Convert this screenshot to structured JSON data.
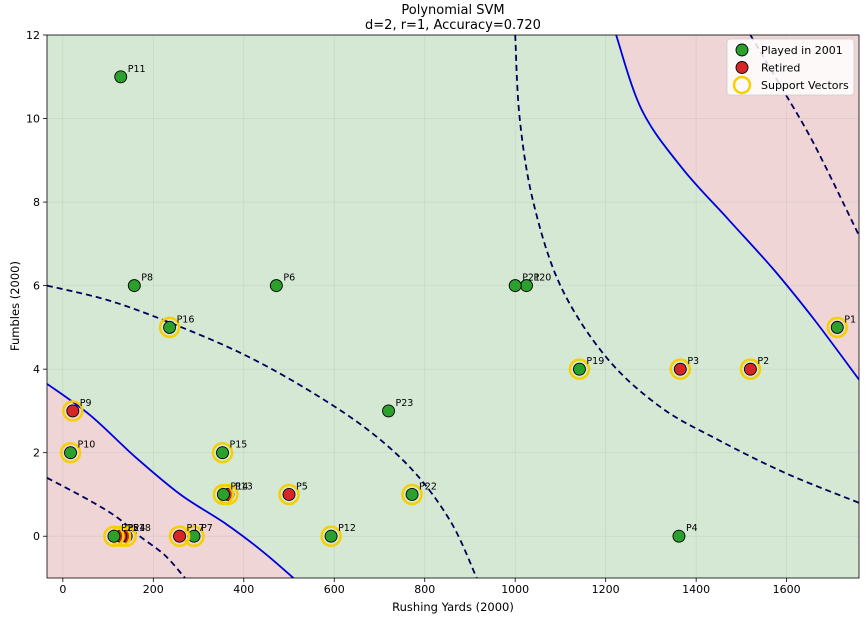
{
  "chart_data": {
    "type": "scatter",
    "title": "Polynomial SVM",
    "subtitle": "d=2, r=1, Accuracy=0.720",
    "xlabel": "Rushing Yards (2000)",
    "ylabel": "Fumbles (2000)",
    "xlim": [
      -35,
      1760
    ],
    "ylim": [
      -1,
      12
    ],
    "xticks": [
      0,
      200,
      400,
      600,
      800,
      1000,
      1200,
      1400,
      1600
    ],
    "yticks": [
      0,
      2,
      4,
      6,
      8,
      10,
      12
    ],
    "grid": true,
    "legend_position": "top-right",
    "colors": {
      "played": "#2ca02c",
      "retired": "#d62728",
      "support": "#f5d000",
      "region_played": "#d5e8d4",
      "region_retired": "#efd5d5",
      "boundary": "#0000dd",
      "margin": "#00005a"
    },
    "legend": [
      {
        "label": "Played in 2001",
        "kind": "played"
      },
      {
        "label": "Retired",
        "kind": "retired"
      },
      {
        "label": "Support Vectors",
        "kind": "support"
      }
    ],
    "points": [
      {
        "label": "P1",
        "x": 1712,
        "y": 5,
        "class": "played",
        "support": true
      },
      {
        "label": "P2",
        "x": 1520,
        "y": 4,
        "class": "retired",
        "support": true
      },
      {
        "label": "P3",
        "x": 1365,
        "y": 4,
        "class": "retired",
        "support": true
      },
      {
        "label": "P4",
        "x": 1362,
        "y": 0,
        "class": "played",
        "support": false
      },
      {
        "label": "P5",
        "x": 500,
        "y": 1,
        "class": "retired",
        "support": true
      },
      {
        "label": "P6",
        "x": 472,
        "y": 6,
        "class": "played",
        "support": false
      },
      {
        "label": "P7",
        "x": 290,
        "y": 0,
        "class": "played",
        "support": true
      },
      {
        "label": "P8",
        "x": 158,
        "y": 6,
        "class": "played",
        "support": false
      },
      {
        "label": "P9",
        "x": 22,
        "y": 3,
        "class": "retired",
        "support": true
      },
      {
        "label": "P10",
        "x": 17,
        "y": 2,
        "class": "played",
        "support": true
      },
      {
        "label": "P11",
        "x": 128,
        "y": 11,
        "class": "played",
        "support": false
      },
      {
        "label": "P12",
        "x": 593,
        "y": 0,
        "class": "played",
        "support": true
      },
      {
        "label": "P13",
        "x": 365,
        "y": 1,
        "class": "retired",
        "support": true
      },
      {
        "label": "P14",
        "x": 355,
        "y": 1,
        "class": "played",
        "support": true
      },
      {
        "label": "P15",
        "x": 353,
        "y": 2,
        "class": "played",
        "support": true
      },
      {
        "label": "P16",
        "x": 236,
        "y": 5,
        "class": "played",
        "support": true
      },
      {
        "label": "P17",
        "x": 258,
        "y": 0,
        "class": "retired",
        "support": true
      },
      {
        "label": "P18",
        "x": 140,
        "y": 0,
        "class": "retired",
        "support": true
      },
      {
        "label": "P19",
        "x": 1142,
        "y": 4,
        "class": "played",
        "support": true
      },
      {
        "label": "P20",
        "x": 1025,
        "y": 6,
        "class": "played",
        "support": false
      },
      {
        "label": "P21",
        "x": 1000,
        "y": 6,
        "class": "played",
        "support": false
      },
      {
        "label": "P22",
        "x": 772,
        "y": 1,
        "class": "played",
        "support": true
      },
      {
        "label": "P23",
        "x": 720,
        "y": 3,
        "class": "played",
        "support": false
      },
      {
        "label": "P24",
        "x": 128,
        "y": 0,
        "class": "retired",
        "support": true
      },
      {
        "label": "P25",
        "x": 113,
        "y": 0,
        "class": "played",
        "support": true
      }
    ]
  }
}
